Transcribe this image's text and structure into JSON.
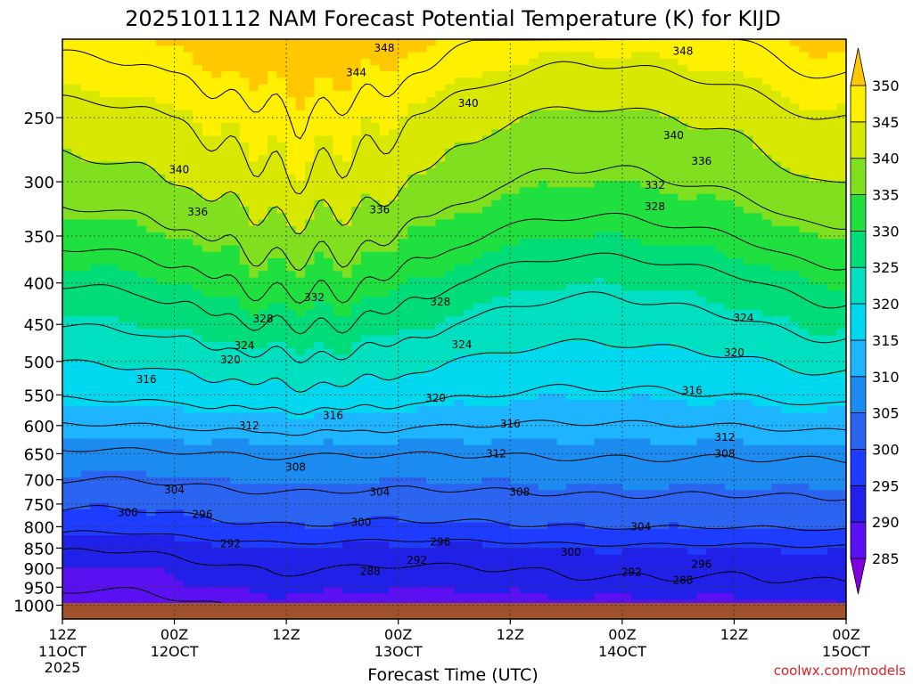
{
  "chart_data": {
    "type": "heatmap",
    "title": "2025101112 NAM Forecast Potential Temperature (K) for KIJD",
    "xlabel": "Forecast Time (UTC)",
    "ylabel": "",
    "credit": "coolwx.com/models",
    "x_ticks": [
      {
        "hours": 0,
        "line1": "12Z",
        "line2": "11OCT",
        "line3": "2025"
      },
      {
        "hours": 12,
        "line1": "00Z",
        "line2": "12OCT",
        "line3": ""
      },
      {
        "hours": 24,
        "line1": "12Z",
        "line2": "",
        "line3": ""
      },
      {
        "hours": 36,
        "line1": "00Z",
        "line2": "13OCT",
        "line3": ""
      },
      {
        "hours": 48,
        "line1": "12Z",
        "line2": "",
        "line3": ""
      },
      {
        "hours": 60,
        "line1": "00Z",
        "line2": "14OCT",
        "line3": ""
      },
      {
        "hours": 72,
        "line1": "12Z",
        "line2": "",
        "line3": ""
      },
      {
        "hours": 84,
        "line1": "00Z",
        "line2": "15OCT",
        "line3": ""
      }
    ],
    "x_range_hours": [
      0,
      84
    ],
    "y_axis_scale": "log-pressure",
    "y_range_hpa": [
      1040,
      200
    ],
    "y_ticks_hpa": [
      250,
      300,
      350,
      400,
      450,
      500,
      550,
      600,
      650,
      700,
      750,
      800,
      850,
      900,
      950,
      1000
    ],
    "grid": true,
    "colorbar_levels": [
      285,
      290,
      295,
      300,
      305,
      310,
      315,
      320,
      325,
      330,
      335,
      340,
      345,
      350
    ],
    "colorbar_colors": [
      "#8000e0",
      "#5a10f0",
      "#2020e8",
      "#1e3cff",
      "#2a64f0",
      "#1c8cf0",
      "#1eb4ff",
      "#00d8f0",
      "#00e0c0",
      "#00dc78",
      "#20e040",
      "#80e020",
      "#d8e800",
      "#fff000",
      "#ffc800"
    ],
    "isotherm_levels": [
      288,
      292,
      296,
      300,
      304,
      308,
      312,
      316,
      320,
      324,
      328,
      332,
      336,
      340,
      344,
      348
    ],
    "contour_labels": [
      {
        "value": 348,
        "hours": 34.5,
        "hpa": 205
      },
      {
        "value": 348,
        "hours": 66.5,
        "hpa": 207
      },
      {
        "value": 344,
        "hours": 31.5,
        "hpa": 220
      },
      {
        "value": 340,
        "hours": 43.5,
        "hpa": 240
      },
      {
        "value": 340,
        "hours": 65.5,
        "hpa": 263
      },
      {
        "value": 340,
        "hours": 12.5,
        "hpa": 290
      },
      {
        "value": 336,
        "hours": 68.5,
        "hpa": 283
      },
      {
        "value": 336,
        "hours": 14.5,
        "hpa": 327
      },
      {
        "value": 336,
        "hours": 34.0,
        "hpa": 325
      },
      {
        "value": 332,
        "hours": 63.5,
        "hpa": 303
      },
      {
        "value": 328,
        "hours": 63.5,
        "hpa": 322
      },
      {
        "value": 332,
        "hours": 27.0,
        "hpa": 417
      },
      {
        "value": 328,
        "hours": 40.5,
        "hpa": 422
      },
      {
        "value": 328,
        "hours": 21.5,
        "hpa": 443
      },
      {
        "value": 324,
        "hours": 73.0,
        "hpa": 442
      },
      {
        "value": 324,
        "hours": 19.5,
        "hpa": 478
      },
      {
        "value": 324,
        "hours": 42.8,
        "hpa": 477
      },
      {
        "value": 320,
        "hours": 18.0,
        "hpa": 498
      },
      {
        "value": 320,
        "hours": 72.0,
        "hpa": 488
      },
      {
        "value": 316,
        "hours": 9.0,
        "hpa": 526
      },
      {
        "value": 316,
        "hours": 67.5,
        "hpa": 543
      },
      {
        "value": 320,
        "hours": 40.0,
        "hpa": 555
      },
      {
        "value": 316,
        "hours": 29.0,
        "hpa": 583
      },
      {
        "value": 316,
        "hours": 48.0,
        "hpa": 597
      },
      {
        "value": 312,
        "hours": 20.0,
        "hpa": 600
      },
      {
        "value": 312,
        "hours": 71.0,
        "hpa": 620
      },
      {
        "value": 312,
        "hours": 46.5,
        "hpa": 650
      },
      {
        "value": 308,
        "hours": 71.0,
        "hpa": 650
      },
      {
        "value": 308,
        "hours": 25.0,
        "hpa": 675
      },
      {
        "value": 304,
        "hours": 12.0,
        "hpa": 720
      },
      {
        "value": 304,
        "hours": 34.0,
        "hpa": 725
      },
      {
        "value": 308,
        "hours": 49.0,
        "hpa": 725
      },
      {
        "value": 300,
        "hours": 7.0,
        "hpa": 768
      },
      {
        "value": 296,
        "hours": 15.0,
        "hpa": 772
      },
      {
        "value": 300,
        "hours": 32.0,
        "hpa": 790
      },
      {
        "value": 304,
        "hours": 62.0,
        "hpa": 800
      },
      {
        "value": 296,
        "hours": 40.5,
        "hpa": 835
      },
      {
        "value": 292,
        "hours": 18.0,
        "hpa": 840
      },
      {
        "value": 300,
        "hours": 54.5,
        "hpa": 860
      },
      {
        "value": 292,
        "hours": 38.0,
        "hpa": 880
      },
      {
        "value": 296,
        "hours": 68.5,
        "hpa": 890
      },
      {
        "value": 288,
        "hours": 33.0,
        "hpa": 908
      },
      {
        "value": 292,
        "hours": 61.0,
        "hpa": 910
      },
      {
        "value": 288,
        "hours": 66.5,
        "hpa": 932
      }
    ]
  }
}
